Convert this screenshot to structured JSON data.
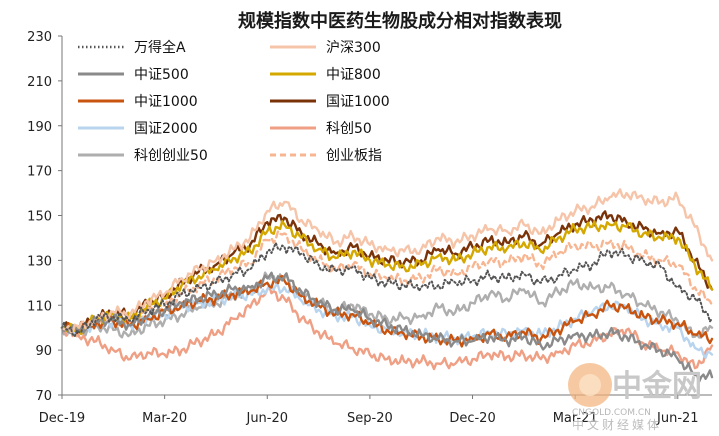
{
  "chart_data": {
    "type": "line",
    "title": "规模指数中医药生物股成分相对指数表现",
    "xlabel": "",
    "ylabel": "",
    "ylim": [
      70,
      230
    ],
    "yticks": [
      70,
      90,
      110,
      130,
      150,
      170,
      190,
      210,
      230
    ],
    "xlim": [
      0,
      19
    ],
    "xticks": [
      {
        "x": 0,
        "label": "Dec-19"
      },
      {
        "x": 3,
        "label": "Mar-20"
      },
      {
        "x": 6,
        "label": "Jun-20"
      },
      {
        "x": 9,
        "label": "Sep-20"
      },
      {
        "x": 12,
        "label": "Dec-20"
      },
      {
        "x": 15,
        "label": "Mar-21"
      },
      {
        "x": 18,
        "label": "Jun-21"
      }
    ],
    "grid": false,
    "legend": "top-left",
    "x": [
      0,
      0.5,
      1,
      1.5,
      2,
      2.5,
      3,
      3.5,
      4,
      4.5,
      5,
      5.5,
      6,
      6.5,
      7,
      7.5,
      8,
      8.5,
      9,
      9.5,
      10,
      10.5,
      11,
      11.5,
      12,
      12.5,
      13,
      13.5,
      14,
      14.5,
      15,
      15.5,
      16,
      16.5,
      17,
      17.5,
      18,
      18.5,
      19
    ],
    "series": [
      {
        "name": "万得全A",
        "color": "#555555",
        "style": "dotted",
        "values": [
          100,
          98,
          104,
          105,
          103,
          108,
          110,
          115,
          118,
          120,
          124,
          126,
          134,
          136,
          133,
          128,
          125,
          127,
          122,
          120,
          119,
          118,
          119,
          120,
          121,
          123,
          122,
          124,
          120,
          123,
          126,
          128,
          134,
          132,
          130,
          127,
          118,
          113,
          104
        ]
      },
      {
        "name": "沪深300",
        "color": "#f6c4a8",
        "style": "solid",
        "values": [
          100,
          100,
          104,
          107,
          106,
          112,
          115,
          122,
          126,
          130,
          135,
          140,
          152,
          156,
          148,
          143,
          138,
          141,
          137,
          135,
          134,
          135,
          140,
          138,
          141,
          144,
          143,
          146,
          142,
          148,
          152,
          154,
          158,
          160,
          157,
          156,
          158,
          145,
          130
        ]
      },
      {
        "name": "中证500",
        "color": "#8a8a8a",
        "style": "solid",
        "values": [
          100,
          99,
          103,
          104,
          101,
          105,
          108,
          111,
          113,
          115,
          117,
          118,
          122,
          123,
          116,
          111,
          108,
          108,
          104,
          101,
          99,
          97,
          95,
          94,
          94,
          96,
          94,
          96,
          92,
          94,
          97,
          96,
          98,
          96,
          92,
          90,
          86,
          79,
          78
        ]
      },
      {
        "name": "中证800",
        "color": "#d4a800",
        "style": "solid",
        "values": [
          100,
          99,
          104,
          106,
          104,
          110,
          113,
          119,
          123,
          126,
          131,
          134,
          143,
          146,
          140,
          135,
          131,
          134,
          130,
          128,
          127,
          128,
          132,
          130,
          133,
          136,
          135,
          138,
          134,
          140,
          144,
          145,
          146,
          145,
          142,
          140,
          140,
          128,
          117
        ]
      },
      {
        "name": "中证1000",
        "color": "#c8540f",
        "style": "solid",
        "values": [
          100,
          99,
          102,
          103,
          101,
          104,
          107,
          110,
          112,
          113,
          115,
          116,
          120,
          121,
          114,
          110,
          106,
          106,
          102,
          99,
          97,
          96,
          95,
          94,
          95,
          97,
          96,
          98,
          95,
          99,
          103,
          106,
          110,
          109,
          105,
          103,
          102,
          97,
          95
        ]
      },
      {
        "name": "国证1000",
        "color": "#7a3208",
        "style": "solid",
        "values": [
          100,
          100,
          104,
          107,
          105,
          111,
          114,
          120,
          125,
          128,
          133,
          137,
          147,
          149,
          142,
          137,
          133,
          136,
          132,
          130,
          129,
          130,
          135,
          133,
          136,
          139,
          138,
          141,
          137,
          142,
          146,
          148,
          150,
          147,
          144,
          142,
          143,
          130,
          117
        ]
      },
      {
        "name": "国证2000",
        "color": "#b8d4ee",
        "style": "solid",
        "values": [
          100,
          99,
          102,
          103,
          101,
          104,
          106,
          109,
          111,
          112,
          114,
          115,
          117,
          118,
          112,
          108,
          105,
          105,
          101,
          99,
          98,
          97,
          96,
          95,
          96,
          98,
          97,
          99,
          97,
          100,
          104,
          107,
          110,
          109,
          104,
          101,
          100,
          91,
          88
        ]
      },
      {
        "name": "科创50",
        "color": "#ef9f84",
        "style": "solid",
        "values": [
          100,
          96,
          94,
          90,
          86,
          89,
          88,
          90,
          94,
          97,
          104,
          109,
          117,
          113,
          104,
          98,
          93,
          91,
          88,
          86,
          85,
          85,
          84,
          84,
          86,
          88,
          87,
          88,
          86,
          89,
          92,
          94,
          97,
          99,
          93,
          90,
          89,
          82,
          92
        ]
      },
      {
        "name": "科创创业50",
        "color": "#aeaeae",
        "style": "solid",
        "values": [
          100,
          98,
          101,
          99,
          97,
          101,
          103,
          106,
          109,
          111,
          114,
          116,
          123,
          122,
          115,
          111,
          108,
          110,
          106,
          104,
          104,
          105,
          109,
          107,
          111,
          115,
          113,
          117,
          111,
          116,
          120,
          118,
          118,
          115,
          110,
          107,
          103,
          96,
          100
        ]
      },
      {
        "name": "创业板指",
        "color": "#f7b691",
        "style": "dashed",
        "values": [
          100,
          98,
          103,
          104,
          102,
          107,
          110,
          115,
          119,
          122,
          126,
          129,
          139,
          142,
          135,
          130,
          126,
          128,
          124,
          122,
          121,
          122,
          126,
          124,
          127,
          130,
          129,
          132,
          128,
          133,
          137,
          136,
          138,
          136,
          132,
          130,
          128,
          118,
          110
        ]
      }
    ]
  },
  "watermark": {
    "brand": "中金网",
    "domain": "CNGOLD.COM.CN",
    "tagline": "中文财经媒体"
  }
}
